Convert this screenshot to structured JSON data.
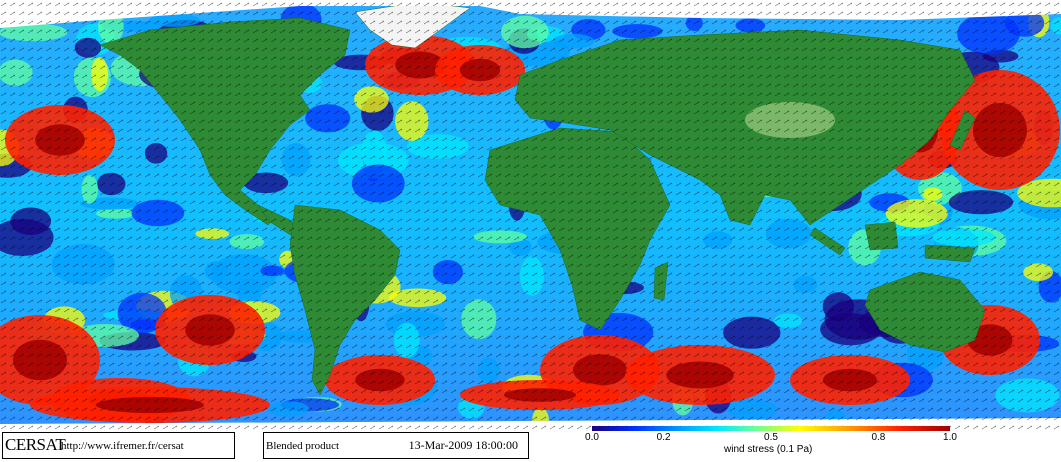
{
  "map": {
    "ocean_palette": [
      "#1a0080",
      "#0030ff",
      "#00a0ff",
      "#00e8ff",
      "#60ffa0",
      "#ffff00",
      "#ff9a00",
      "#ff2000",
      "#a00000"
    ],
    "land_color": "#2f8a35",
    "land_highlight": "#7cb86a",
    "ice_color": "#ffffff",
    "vector_color": "#000000"
  },
  "footer": {
    "cersat_logo": "CERSAT",
    "cersat_url": "http://www.ifremer.fr/cersat",
    "product_label": "Blended product",
    "product_date": "13-Mar-2009 18:00:00"
  },
  "scale": {
    "ticks": [
      "0.0",
      "0.2",
      "0.5",
      "0.8",
      "1.0"
    ],
    "tick_values": [
      0.0,
      0.2,
      0.5,
      0.8,
      1.0
    ],
    "label": "wind stress (0.1 Pa)"
  }
}
